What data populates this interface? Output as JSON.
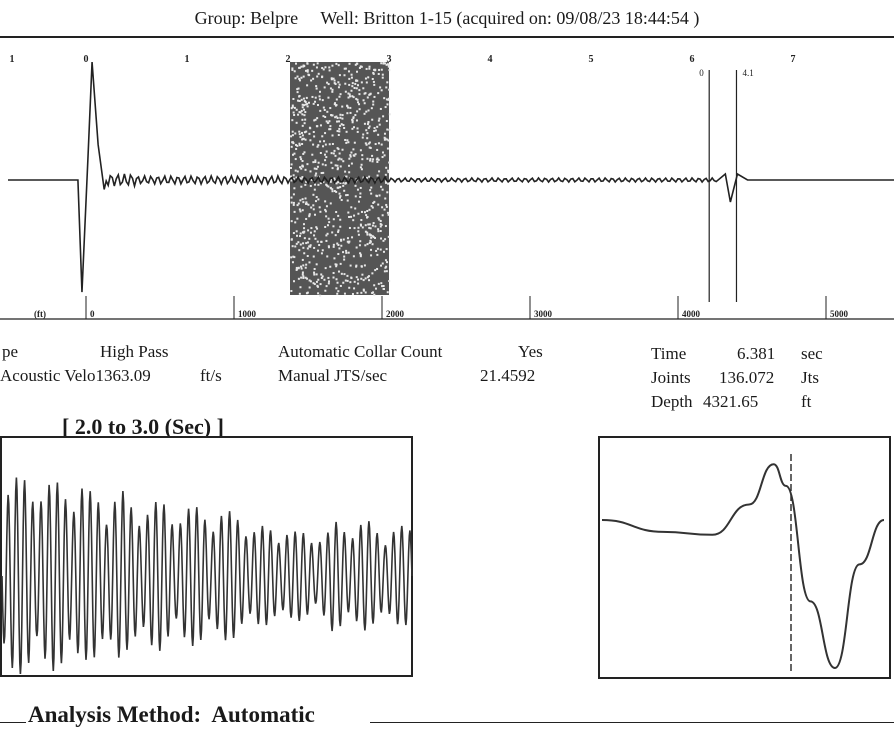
{
  "header": {
    "group_label": "Group:",
    "group": "Belpre",
    "well_label": "Well:",
    "well": "Britton 1-15",
    "acquired_prefix": "(acquired on:",
    "acquired": "09/08/23 18:44:54",
    "acquired_suffix": ")"
  },
  "params_left": [
    {
      "label": "pe",
      "value": "High Pass",
      "unit": ""
    },
    {
      "label": "Acoustic Velo",
      "value": "1363.09",
      "unit": "ft/s"
    }
  ],
  "params_mid": [
    {
      "label": "Automatic Collar Count",
      "value": "Yes"
    },
    {
      "label": "Manual JTS/sec",
      "value": "21.4592"
    }
  ],
  "params_right": [
    {
      "label": "Time",
      "value": "6.381",
      "unit": "sec"
    },
    {
      "label": "Joints",
      "value": "136.072",
      "unit": "Jts"
    },
    {
      "label": "Depth",
      "value": "4321.65",
      "unit": "ft"
    }
  ],
  "zoom_title": "[ 2.0  to  3.0 (Sec) ]",
  "analysis": {
    "label": "Analysis Method:",
    "value": "Automatic"
  },
  "chart_data": [
    {
      "type": "line",
      "xlabel": "",
      "ylabel": "",
      "time_ticks": [
        "1",
        "0",
        "1",
        "2",
        "3",
        "4",
        "5",
        "6",
        "7"
      ],
      "depth_label": "(ft)",
      "depth_ticks": [
        "0",
        "1000",
        "2000",
        "3000",
        "4000",
        "5000"
      ],
      "xlim_sec": [
        -1,
        7.4
      ],
      "highlight_window_sec": [
        2.0,
        3.0
      ],
      "marker_lines_sec": [
        6.2,
        6.381
      ],
      "marker_labels": [
        "0",
        "4.1"
      ],
      "signal_points": [
        {
          "t": -0.08,
          "y": 0
        },
        {
          "t": -0.04,
          "y": -0.95
        },
        {
          "t": 0.02,
          "y": 0.2
        },
        {
          "t": 0.06,
          "y": 1.0
        },
        {
          "t": 0.12,
          "y": 0.3
        },
        {
          "t": 0.18,
          "y": -0.08
        },
        {
          "t": 0.25,
          "y": 0.04
        },
        {
          "t": 0.4,
          "y": -0.03
        },
        {
          "t": 1.0,
          "y": 0.02
        },
        {
          "t": 2.0,
          "y": 0.02
        },
        {
          "t": 3.0,
          "y": 0.0
        },
        {
          "t": 6.25,
          "y": 0.0
        },
        {
          "t": 6.33,
          "y": 0.05
        },
        {
          "t": 6.38,
          "y": -0.2
        },
        {
          "t": 6.45,
          "y": 0.05
        },
        {
          "t": 6.55,
          "y": 0.0
        }
      ]
    },
    {
      "type": "line",
      "title": "[ 2.0  to  3.0 (Sec) ]",
      "xlim_sec": [
        2.0,
        3.0
      ],
      "oscillation_cycles": 50,
      "amplitude_envelope": [
        1.0,
        0.95,
        0.85,
        0.75,
        0.7,
        0.65,
        0.5,
        0.45,
        0.55,
        0.5
      ]
    },
    {
      "type": "line",
      "title": "",
      "marker_line": 6.381,
      "pulse_points": [
        {
          "x": 0.0,
          "y": 0.0
        },
        {
          "x": 0.25,
          "y": -0.08
        },
        {
          "x": 0.45,
          "y": -0.1
        },
        {
          "x": 0.6,
          "y": 0.25
        },
        {
          "x": 0.7,
          "y": 0.9
        },
        {
          "x": 0.75,
          "y": 0.55
        },
        {
          "x": 0.85,
          "y": -0.55
        },
        {
          "x": 0.95,
          "y": -1.0
        },
        {
          "x": 1.05,
          "y": -0.3
        },
        {
          "x": 1.15,
          "y": 0.0
        }
      ]
    }
  ]
}
